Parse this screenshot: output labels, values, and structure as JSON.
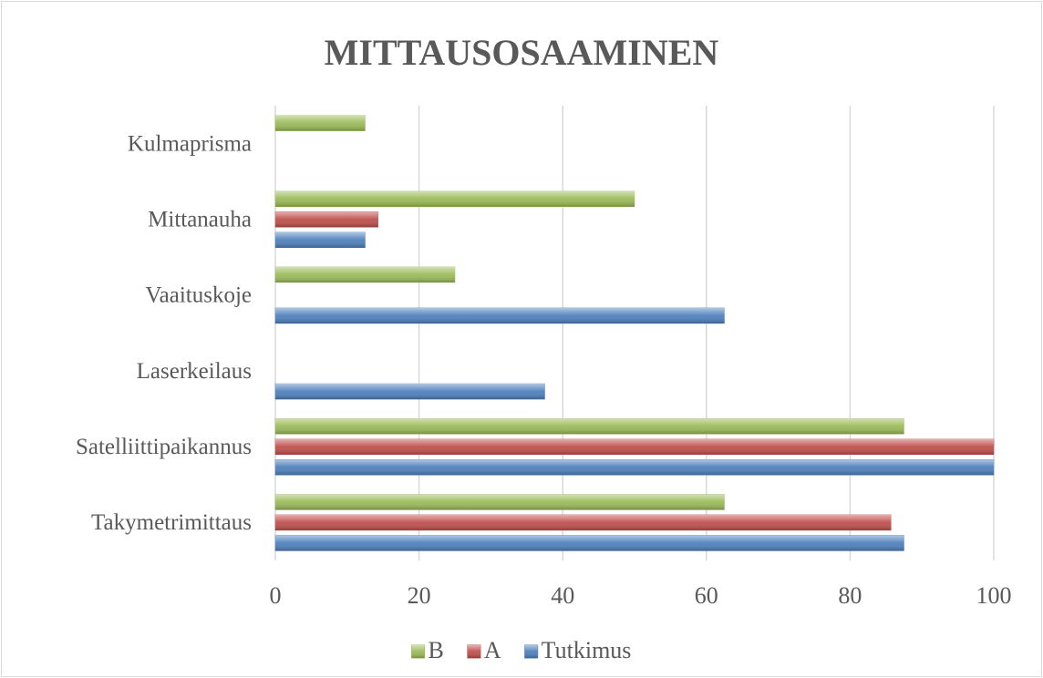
{
  "chart_data": {
    "type": "barh",
    "title": "MITTAUSOSAAMINEN",
    "categories": [
      "Takymetrimittaus",
      "Satelliittipaikannus",
      "Laserkeilaus",
      "Vaaituskoje",
      "Mittanauha",
      "Kulmaprisma"
    ],
    "series": [
      {
        "name": "Tutkimus",
        "color": "#4f81bd",
        "values": [
          87.5,
          100,
          37.5,
          62.5,
          12.5,
          0
        ]
      },
      {
        "name": "A",
        "color": "#c0504d",
        "values": [
          85.7,
          100,
          0,
          0,
          14.3,
          0
        ]
      },
      {
        "name": "B",
        "color": "#9bbb59",
        "values": [
          62.5,
          87.5,
          0,
          25,
          50,
          12.5
        ]
      }
    ],
    "xlim": [
      0,
      100
    ],
    "xticks": [
      0,
      20,
      40,
      60,
      80,
      100
    ],
    "grid": true,
    "legend": "bottom"
  }
}
